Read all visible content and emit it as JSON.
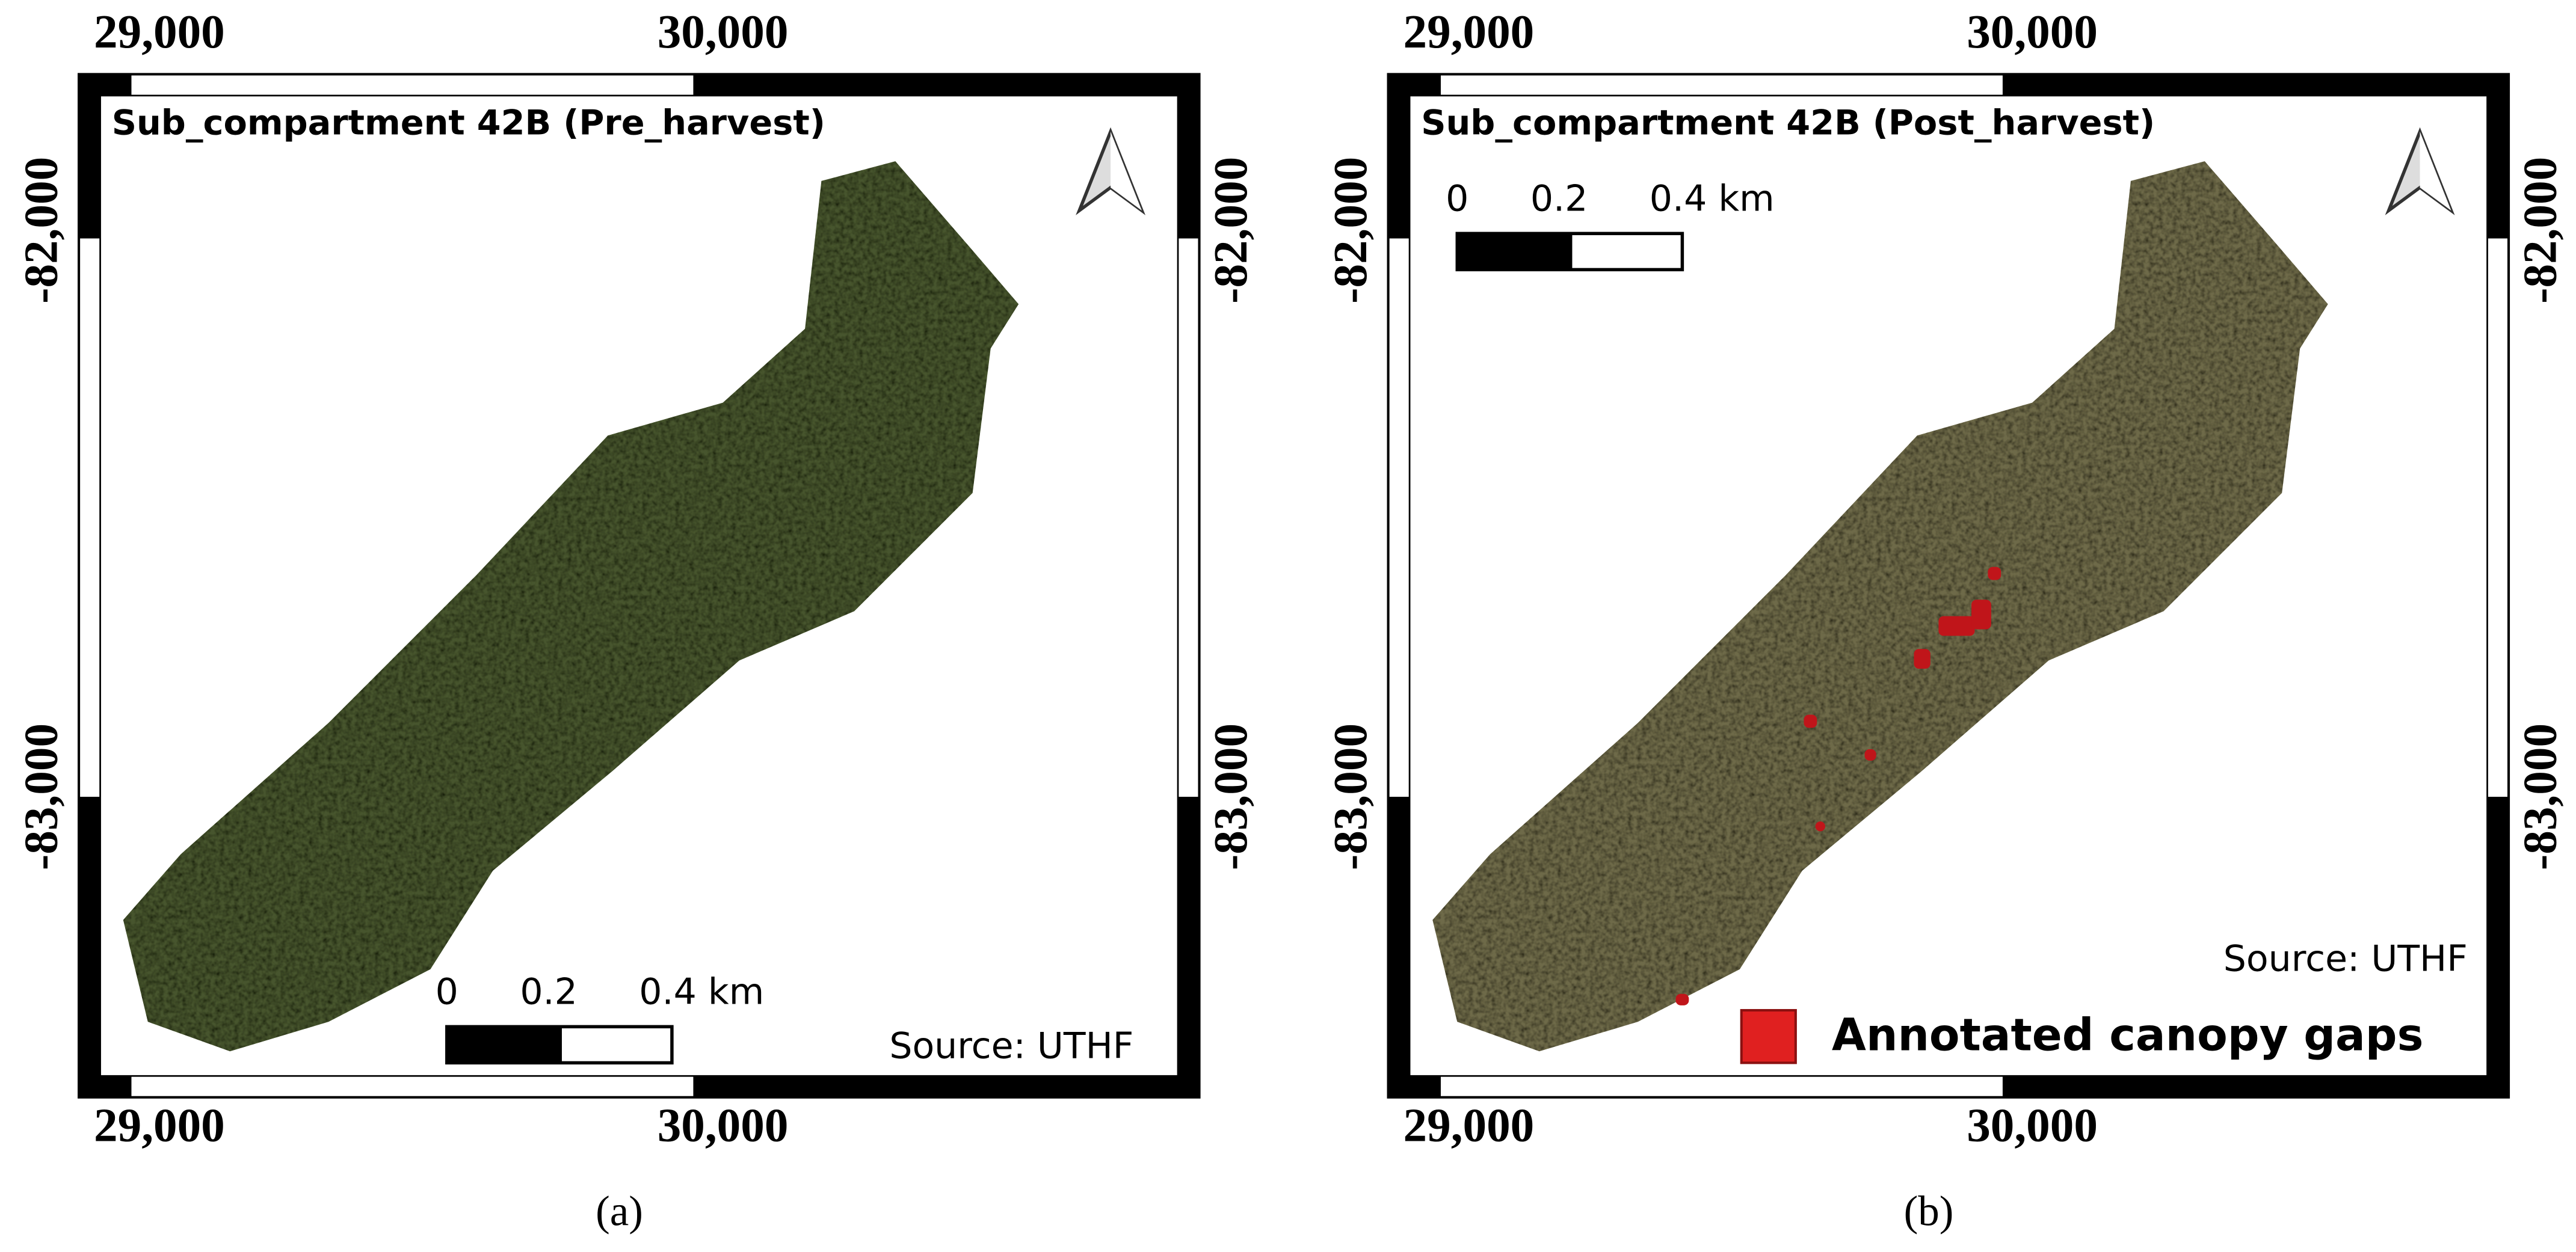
{
  "panels": [
    {
      "title": "Sub_compartment 42B (Pre_harvest)",
      "x_labels": [
        "29,000",
        "30,000"
      ],
      "y_labels": [
        "-82,000",
        "-83,000"
      ],
      "scale_bar": {
        "labels": [
          "0",
          "0.2",
          "0.4 km"
        ]
      },
      "source": "Source: UTHF",
      "caption": "(a)"
    },
    {
      "title": "Sub_compartment 42B (Post_harvest)",
      "x_labels": [
        "29,000",
        "30,000"
      ],
      "y_labels": [
        "-82,000",
        "-83,000"
      ],
      "scale_bar": {
        "labels": [
          "0",
          "0.2",
          "0.4 km"
        ]
      },
      "source": "Source: UTHF",
      "legend": "Annotated canopy gaps",
      "caption": "(b)"
    }
  ]
}
